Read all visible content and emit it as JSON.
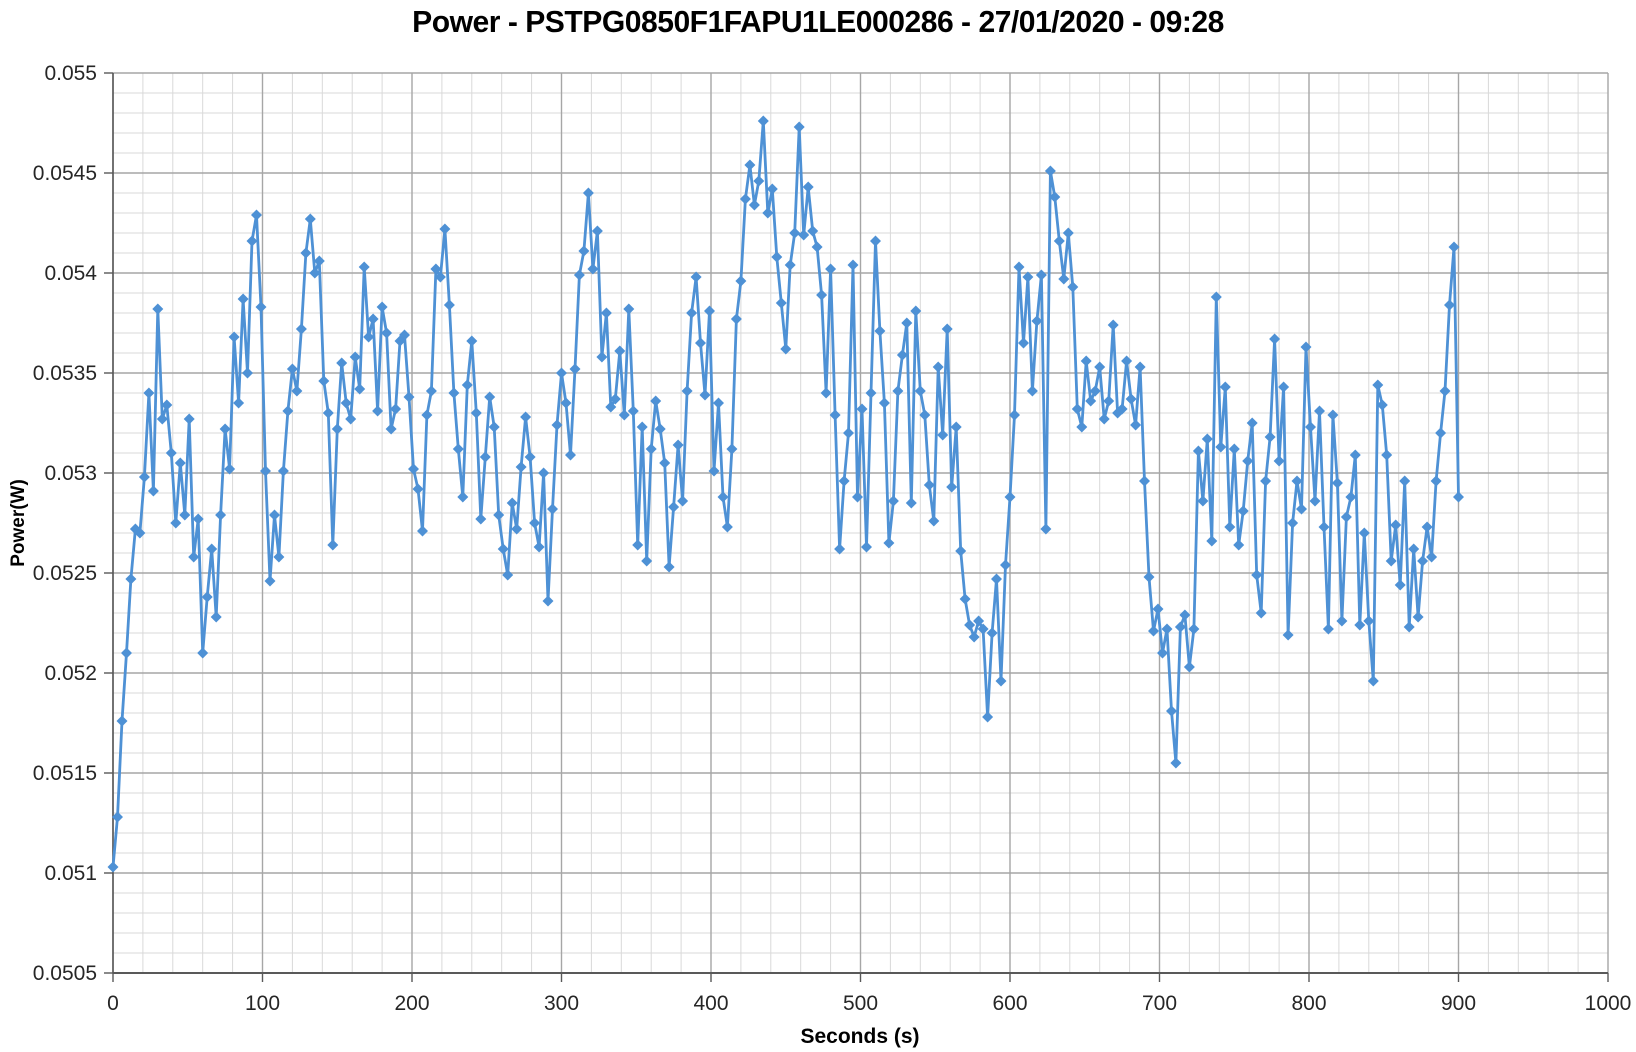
{
  "page": {
    "title_text": "Power - PSTPG0850F1FAPU1LE000286 - 27/01/2020 - 09:28"
  },
  "chart_data": {
    "type": "line",
    "title": "Power - PSTPG0850F1FAPU1LE000286 - 27/01/2020 - 09:28",
    "xlabel": "Seconds (s)",
    "ylabel": "Power(W)",
    "xlim": [
      0,
      1000
    ],
    "ylim": [
      0.0505,
      0.055
    ],
    "x_major_step": 100,
    "x_minor_step": 20,
    "y_major_step": 0.0005,
    "y_minor_step": 0.0001,
    "x_tick_labels": [
      "0",
      "100",
      "200",
      "300",
      "400",
      "500",
      "600",
      "700",
      "800",
      "900",
      "1000"
    ],
    "y_tick_labels": [
      "0.0505",
      "0.051",
      "0.0515",
      "0.052",
      "0.0525",
      "0.053",
      "0.0535",
      "0.054",
      "0.0545",
      "0.055"
    ],
    "grid": "major+minor",
    "legend": "none",
    "series": [
      {
        "name": "Power",
        "color": "#4E91D5",
        "marker": "diamond",
        "x_start": 0,
        "x_step": 3,
        "values": [
          0.05103,
          0.05128,
          0.05176,
          0.0521,
          0.05247,
          0.05272,
          0.0527,
          0.05298,
          0.0534,
          0.05291,
          0.05382,
          0.05327,
          0.05334,
          0.0531,
          0.05275,
          0.05305,
          0.05279,
          0.05327,
          0.05258,
          0.05277,
          0.0521,
          0.05238,
          0.05262,
          0.05228,
          0.05279,
          0.05322,
          0.05302,
          0.05368,
          0.05335,
          0.05387,
          0.0535,
          0.05416,
          0.05429,
          0.05383,
          0.05301,
          0.05246,
          0.05279,
          0.05258,
          0.05301,
          0.05331,
          0.05352,
          0.05341,
          0.05372,
          0.0541,
          0.05427,
          0.054,
          0.05406,
          0.05346,
          0.0533,
          0.05264,
          0.05322,
          0.05355,
          0.05335,
          0.05327,
          0.05358,
          0.05342,
          0.05403,
          0.05368,
          0.05377,
          0.05331,
          0.05383,
          0.0537,
          0.05322,
          0.05332,
          0.05366,
          0.05369,
          0.05338,
          0.05302,
          0.05292,
          0.05271,
          0.05329,
          0.05341,
          0.05402,
          0.05398,
          0.05422,
          0.05384,
          0.0534,
          0.05312,
          0.05288,
          0.05344,
          0.05366,
          0.0533,
          0.05277,
          0.05308,
          0.05338,
          0.05323,
          0.05279,
          0.05262,
          0.05249,
          0.05285,
          0.05272,
          0.05303,
          0.05328,
          0.05308,
          0.05275,
          0.05263,
          0.053,
          0.05236,
          0.05282,
          0.05324,
          0.0535,
          0.05335,
          0.05309,
          0.05352,
          0.05399,
          0.05411,
          0.0544,
          0.05402,
          0.05421,
          0.05358,
          0.0538,
          0.05333,
          0.05337,
          0.05361,
          0.05329,
          0.05382,
          0.05331,
          0.05264,
          0.05323,
          0.05256,
          0.05312,
          0.05336,
          0.05322,
          0.05305,
          0.05253,
          0.05283,
          0.05314,
          0.05286,
          0.05341,
          0.0538,
          0.05398,
          0.05365,
          0.05339,
          0.05381,
          0.05301,
          0.05335,
          0.05288,
          0.05273,
          0.05312,
          0.05377,
          0.05396,
          0.05437,
          0.05454,
          0.05434,
          0.05446,
          0.05476,
          0.0543,
          0.05442,
          0.05408,
          0.05385,
          0.05362,
          0.05404,
          0.0542,
          0.05473,
          0.05419,
          0.05443,
          0.05421,
          0.05413,
          0.05389,
          0.0534,
          0.05402,
          0.05329,
          0.05262,
          0.05296,
          0.0532,
          0.05404,
          0.05288,
          0.05332,
          0.05263,
          0.0534,
          0.05416,
          0.05371,
          0.05335,
          0.05265,
          0.05286,
          0.05341,
          0.05359,
          0.05375,
          0.05285,
          0.05381,
          0.05341,
          0.05329,
          0.05294,
          0.05276,
          0.05353,
          0.05319,
          0.05372,
          0.05293,
          0.05323,
          0.05261,
          0.05237,
          0.05224,
          0.05218,
          0.05226,
          0.05222,
          0.05178,
          0.0522,
          0.05247,
          0.05196,
          0.05254,
          0.05288,
          0.05329,
          0.05403,
          0.05365,
          0.05398,
          0.05341,
          0.05376,
          0.05399,
          0.05272,
          0.05451,
          0.05438,
          0.05416,
          0.05397,
          0.0542,
          0.05393,
          0.05332,
          0.05323,
          0.05356,
          0.05336,
          0.05341,
          0.05353,
          0.05327,
          0.05336,
          0.05374,
          0.0533,
          0.05332,
          0.05356,
          0.05337,
          0.05324,
          0.05353,
          0.05296,
          0.05248,
          0.05221,
          0.05232,
          0.0521,
          0.05222,
          0.05181,
          0.05155,
          0.05223,
          0.05229,
          0.05203,
          0.05222,
          0.05311,
          0.05286,
          0.05317,
          0.05266,
          0.05388,
          0.05313,
          0.05343,
          0.05273,
          0.05312,
          0.05264,
          0.05281,
          0.05306,
          0.05325,
          0.05249,
          0.0523,
          0.05296,
          0.05318,
          0.05367,
          0.05306,
          0.05343,
          0.05219,
          0.05275,
          0.05296,
          0.05282,
          0.05363,
          0.05323,
          0.05286,
          0.05331,
          0.05273,
          0.05222,
          0.05329,
          0.05295,
          0.05226,
          0.05278,
          0.05288,
          0.05309,
          0.05224,
          0.0527,
          0.05226,
          0.05196,
          0.05344,
          0.05334,
          0.05309,
          0.05256,
          0.05274,
          0.05244,
          0.05296,
          0.05223,
          0.05262,
          0.05228,
          0.05256,
          0.05273,
          0.05258,
          0.05296,
          0.0532,
          0.05341,
          0.05384,
          0.05413,
          0.05288
        ]
      }
    ]
  },
  "colors": {
    "background": "#FFFFFF",
    "major_grid": "#A6A6A6",
    "minor_grid": "#D9D9D9",
    "axis": "#595959",
    "tick_text": "#262626",
    "title_text": "#000000",
    "series": "#4E91D5"
  }
}
